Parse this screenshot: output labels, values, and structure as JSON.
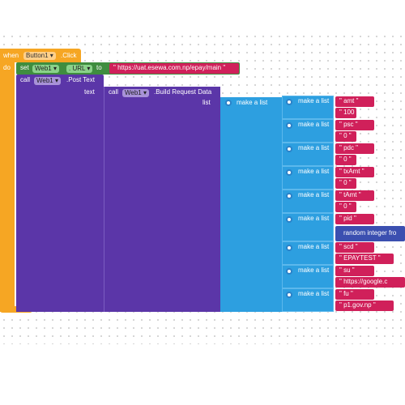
{
  "event": {
    "when": "when",
    "component": "Button1 ▾",
    "event": ".Click",
    "do": "do"
  },
  "set": {
    "keyword": "set",
    "component": "Web1 ▾",
    "property": ". URL ▾",
    "to": "to",
    "value": "\" https://uat.esewa.com.np/epay/main \""
  },
  "post": {
    "call": "call",
    "component": "Web1 ▾",
    "method": ".Post Text",
    "socket": "text"
  },
  "build": {
    "call": "call",
    "component": "Web1 ▾",
    "method": ".Build Request Data",
    "socket": "list"
  },
  "outer_list": {
    "label": "make a list"
  },
  "pairs": [
    {
      "label": "make a list",
      "key": "\" amt \"",
      "value": "\" 100 \""
    },
    {
      "label": "make a list",
      "key": "\" psc \"",
      "value": "\" 0 \""
    },
    {
      "label": "make a list",
      "key": "\" pdc \"",
      "value": "\" 0 \""
    },
    {
      "label": "make a list",
      "key": "\" txAmt \"",
      "value": "\" 0 \""
    },
    {
      "label": "make a list",
      "key": "\" tAmt \"",
      "value": "\" 0 \""
    },
    {
      "label": "make a list",
      "key": "\" pid \"",
      "value_block": "random integer fro"
    },
    {
      "label": "make a list",
      "key": "\" scd \"",
      "value": "\" EPAYTEST \""
    },
    {
      "label": "make a list",
      "key": "\" su \"",
      "value": "\" https://google.c"
    },
    {
      "label": "make a list",
      "key": "\" fu \"",
      "value": "\" p1.gov.np \""
    }
  ]
}
